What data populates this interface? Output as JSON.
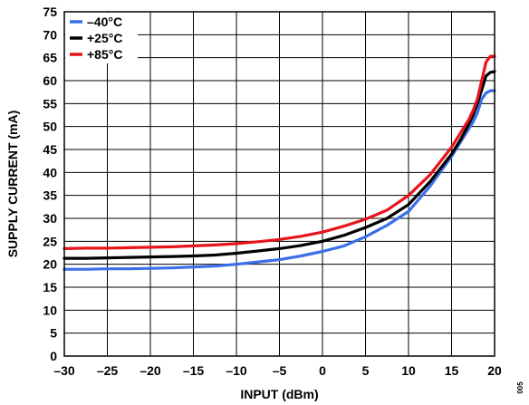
{
  "chart_data": {
    "type": "line",
    "xlabel": "INPUT (dBm)",
    "ylabel": "SUPPLY CURRENT (mA)",
    "xlim": [
      -30,
      20
    ],
    "ylim": [
      0,
      75
    ],
    "x_ticks": [
      -30,
      -25,
      -20,
      -15,
      -10,
      -5,
      0,
      5,
      10,
      15,
      20
    ],
    "y_ticks": [
      0,
      5,
      10,
      15,
      20,
      25,
      30,
      35,
      40,
      45,
      50,
      55,
      60,
      65,
      70,
      75
    ],
    "x_tick_labels": [
      "–30",
      "–25",
      "–20",
      "–15",
      "–10",
      "–5",
      "0",
      "5",
      "10",
      "15",
      "20"
    ],
    "grid": true,
    "legend_position": "top-left",
    "side_note": "005",
    "series": [
      {
        "name": "–40°C",
        "color": "#3a6fe8",
        "x": [
          -30,
          -27.5,
          -25,
          -22.5,
          -20,
          -17.5,
          -15,
          -12.5,
          -10,
          -7.5,
          -5,
          -2.5,
          0,
          2.5,
          5,
          7.5,
          10,
          12.5,
          15,
          16,
          17,
          17.5,
          18,
          18.5,
          19,
          19.5,
          20
        ],
        "y": [
          18.9,
          18.9,
          19.0,
          19.0,
          19.1,
          19.2,
          19.4,
          19.6,
          20.0,
          20.5,
          21.0,
          21.8,
          22.8,
          24.0,
          26.0,
          28.5,
          31.5,
          37.0,
          43.5,
          46.5,
          49.5,
          51.0,
          53.0,
          56.0,
          57.3,
          57.8,
          57.8
        ]
      },
      {
        "name": "+25°C",
        "color": "#000000",
        "x": [
          -30,
          -27.5,
          -25,
          -22.5,
          -20,
          -17.5,
          -15,
          -12.5,
          -10,
          -7.5,
          -5,
          -2.5,
          0,
          2.5,
          5,
          7.5,
          10,
          12.5,
          15,
          16,
          17,
          17.5,
          18,
          18.5,
          19,
          19.5,
          20
        ],
        "y": [
          21.3,
          21.3,
          21.4,
          21.5,
          21.6,
          21.7,
          21.8,
          22.0,
          22.4,
          22.9,
          23.4,
          24.1,
          25.0,
          26.3,
          28.0,
          30.0,
          33.0,
          38.0,
          44.0,
          47.0,
          50.5,
          52.5,
          55.0,
          58.0,
          61.0,
          61.8,
          62.0
        ]
      },
      {
        "name": "+85°C",
        "color": "#e8141c",
        "x": [
          -30,
          -27.5,
          -25,
          -22.5,
          -20,
          -17.5,
          -15,
          -12.5,
          -10,
          -7.5,
          -5,
          -2.5,
          0,
          2.5,
          5,
          7.5,
          10,
          12.5,
          15,
          16,
          17,
          17.5,
          18,
          18.5,
          19,
          19.5,
          20
        ],
        "y": [
          23.4,
          23.5,
          23.5,
          23.6,
          23.7,
          23.8,
          24.0,
          24.2,
          24.5,
          24.9,
          25.4,
          26.1,
          27.0,
          28.3,
          29.8,
          31.8,
          35.0,
          39.5,
          45.5,
          48.5,
          51.5,
          53.5,
          56.0,
          60.0,
          64.0,
          65.3,
          65.3
        ]
      }
    ]
  }
}
